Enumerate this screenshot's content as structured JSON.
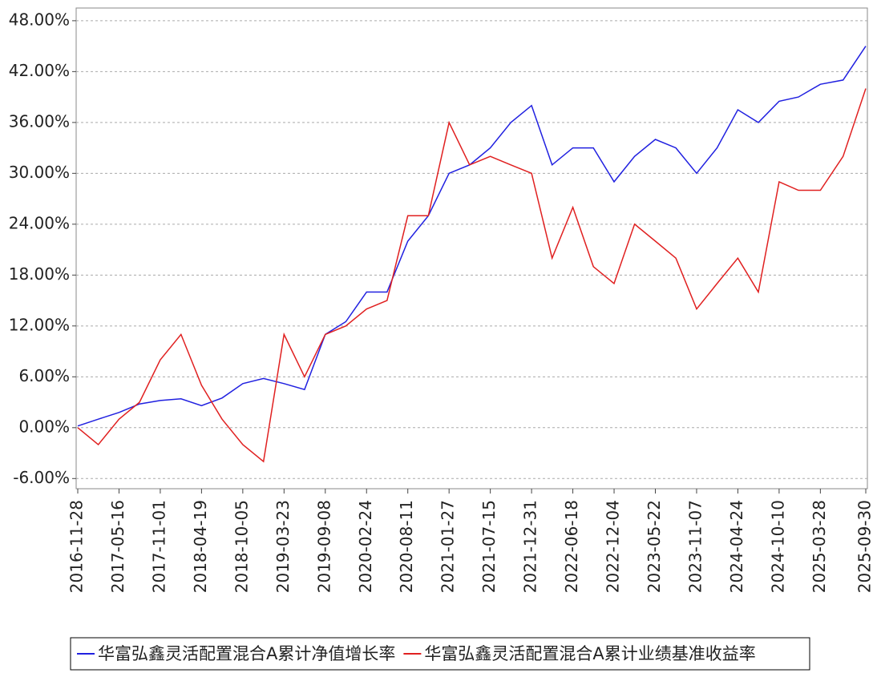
{
  "chart_data": {
    "type": "line",
    "x": [
      "2016-11-28",
      "2017-02-20",
      "2017-05-16",
      "2017-08-08",
      "2017-11-01",
      "2018-01-25",
      "2018-04-19",
      "2018-07-12",
      "2018-10-05",
      "2018-12-29",
      "2019-03-23",
      "2019-06-15",
      "2019-09-08",
      "2019-12-01",
      "2020-02-24",
      "2020-05-18",
      "2020-08-11",
      "2020-11-03",
      "2021-01-27",
      "2021-04-21",
      "2021-07-15",
      "2021-10-07",
      "2021-12-31",
      "2022-03-25",
      "2022-06-18",
      "2022-09-10",
      "2022-12-04",
      "2023-02-26",
      "2023-05-22",
      "2023-08-14",
      "2023-11-07",
      "2024-01-30",
      "2024-04-24",
      "2024-07-17",
      "2024-10-10",
      "2024-12-28",
      "2025-03-28",
      "2025-06-29",
      "2025-09-30"
    ],
    "series": [
      {
        "name": "华富弘鑫灵活配置混合A累计净值增长率",
        "color": "#2020e0",
        "values": [
          0.2,
          1.0,
          1.8,
          2.8,
          3.2,
          3.4,
          2.6,
          3.5,
          5.2,
          5.8,
          5.2,
          4.5,
          11,
          12.5,
          16,
          16,
          22,
          25,
          30,
          31,
          33,
          36,
          38,
          31,
          33,
          33,
          29,
          32,
          34,
          33,
          30,
          33,
          37.5,
          36,
          38.5,
          39,
          40.5,
          41,
          45
        ]
      },
      {
        "name": "华富弘鑫灵活配置混合A累计业绩基准收益率",
        "color": "#e02020",
        "values": [
          0,
          -2,
          1,
          3,
          8,
          11,
          5,
          1,
          -2,
          -4,
          11,
          6,
          11,
          12,
          14,
          15,
          25,
          25,
          36,
          31,
          32,
          31,
          30,
          20,
          26,
          19,
          17,
          24,
          22,
          20,
          14,
          17,
          20,
          16,
          29,
          28,
          28,
          32,
          40
        ]
      }
    ],
    "xlim": [
      "2016-11-28",
      "2025-09-30"
    ],
    "xticks": [
      "2016-11-28",
      "2017-05-16",
      "2017-11-01",
      "2018-04-19",
      "2018-10-05",
      "2019-03-23",
      "2019-09-08",
      "2020-02-24",
      "2020-08-11",
      "2021-01-27",
      "2021-07-15",
      "2021-12-31",
      "2022-06-18",
      "2022-12-04",
      "2023-05-22",
      "2023-11-07",
      "2024-04-24",
      "2024-10-10",
      "2025-03-28",
      "2025-09-30"
    ],
    "ylim": [
      -7.2,
      49.5
    ],
    "yticks": [
      {
        "value": -6,
        "label": "-6.00%"
      },
      {
        "value": 0,
        "label": "0.00%"
      },
      {
        "value": 6,
        "label": "6.00%"
      },
      {
        "value": 12,
        "label": "12.00%"
      },
      {
        "value": 18,
        "label": "18.00%"
      },
      {
        "value": 24,
        "label": "24.00%"
      },
      {
        "value": 30,
        "label": "30.00%"
      },
      {
        "value": 36,
        "label": "36.00%"
      },
      {
        "value": 42,
        "label": "42.00%"
      },
      {
        "value": 48,
        "label": "48.00%"
      }
    ],
    "grid": true,
    "legend": "bottom"
  }
}
